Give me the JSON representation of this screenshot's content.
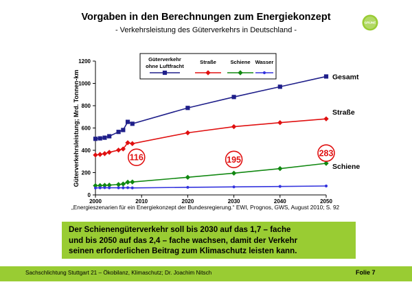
{
  "header": {
    "title": "Vorgaben in den Berechnungen zum Energiekonzept",
    "subtitle": "- Verkehrsleistung des Güterverkehrs in Deutschland -",
    "logo_text": "GRÜNE"
  },
  "chart_data": {
    "type": "line",
    "ylabel": "Güterverkehrsleistung; Mrd. Tonnen-km",
    "xlabel": "",
    "xlim": [
      2000,
      2050
    ],
    "ylim": [
      0,
      1200
    ],
    "x_ticks": [
      "2000",
      "2010",
      "2020",
      "2030",
      "2040",
      "2050"
    ],
    "y_ticks": [
      "0",
      "200",
      "400",
      "600",
      "800",
      "1000",
      "1200"
    ],
    "grid": false,
    "legend_position": "top-inside",
    "legend_title": "Güterverkehr ohne Luftfracht",
    "series": [
      {
        "name": "Güterverkehr ohne Luftfracht",
        "end_label": "Gesamt",
        "color": "#1f1f8a",
        "marker": "square",
        "x": [
          2000,
          2001,
          2002,
          2003,
          2005,
          2006,
          2007,
          2008,
          2020,
          2030,
          2040,
          2050
        ],
        "y": [
          503,
          507,
          513,
          526,
          565,
          582,
          655,
          638,
          780,
          878,
          970,
          1062
        ]
      },
      {
        "name": "Straße",
        "end_label": "Straße",
        "color": "#e01010",
        "marker": "diamond",
        "x": [
          2000,
          2001,
          2002,
          2003,
          2005,
          2006,
          2007,
          2008,
          2020,
          2030,
          2040,
          2050
        ],
        "y": [
          358,
          363,
          370,
          382,
          402,
          412,
          468,
          460,
          557,
          612,
          648,
          682
        ]
      },
      {
        "name": "Schiene",
        "end_label": "Schiene",
        "color": "#118811",
        "marker": "diamond",
        "x": [
          2000,
          2001,
          2002,
          2003,
          2005,
          2006,
          2007,
          2008,
          2020,
          2030,
          2040,
          2050
        ],
        "y": [
          83,
          84,
          86,
          88,
          93,
          98,
          114,
          116,
          158,
          195,
          236,
          283
        ]
      },
      {
        "name": "Wasser",
        "end_label": "",
        "color": "#3333dd",
        "marker": "circle",
        "x": [
          2000,
          2001,
          2002,
          2003,
          2005,
          2006,
          2007,
          2008,
          2020,
          2030,
          2040,
          2050
        ],
        "y": [
          62,
          64,
          65,
          64,
          64,
          64,
          65,
          63,
          68,
          72,
          76,
          80
        ]
      }
    ],
    "annotations": [
      {
        "text": "116",
        "x": 2008,
        "y": 116
      },
      {
        "text": "195",
        "x": 2030,
        "y": 195
      },
      {
        "text": "283",
        "x": 2050,
        "y": 283
      }
    ]
  },
  "source": "„Energieszenarien für ein Energiekonzept der Bundesregierung.“ EWI, Prognos, GWS,  August 2010; S. 92",
  "callout": {
    "line1": "Der Schienengüterverkehr soll bis 2030 auf das 1,7 – fache",
    "line2": "und bis 2050 auf das 2,4 – fache wachsen, damit der Verkehr",
    "line3": "seinen erforderlichen Beitrag zum Klimaschutz leisten kann."
  },
  "footer": {
    "text": "Sachschlichtung Stuttgart 21 – Ökobilanz, Klimaschutz; Dr. Joachim Nitsch",
    "slide": "Folie 7"
  },
  "colors": {
    "accent_green": "#99cc33",
    "annotation_red": "#e01010"
  }
}
